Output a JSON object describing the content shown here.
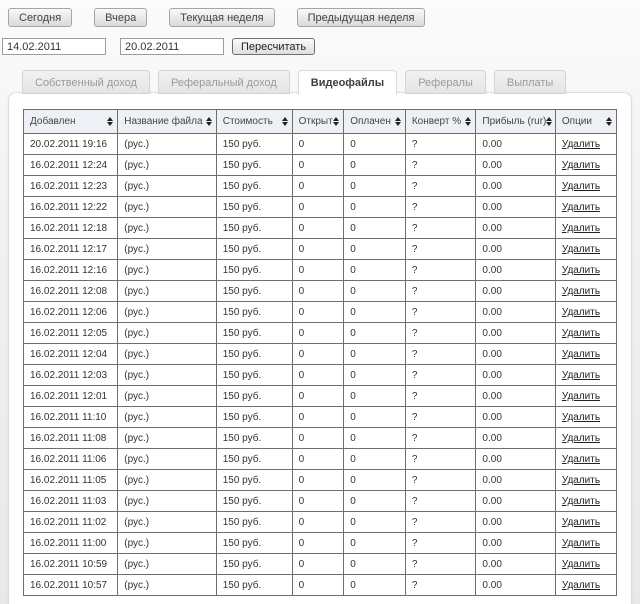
{
  "toolbar": {
    "buttons": [
      {
        "label": "Сегодня"
      },
      {
        "label": "Вчера"
      },
      {
        "label": "Текущая неделя"
      },
      {
        "label": "Предыдущая неделя"
      }
    ]
  },
  "date_filter": {
    "from_value": "14.02.2011",
    "to_value": "20.02.2011",
    "recalculate_label": "Пересчитать"
  },
  "tabs": [
    {
      "label": "Собственный доход",
      "active": false
    },
    {
      "label": "Реферальный доход",
      "active": false
    },
    {
      "label": "Видеофайлы",
      "active": true
    },
    {
      "label": "Рефералы",
      "active": false
    },
    {
      "label": "Выплаты",
      "active": false
    }
  ],
  "table": {
    "columns": [
      "Добавлен",
      "Название файла",
      "Стоимость",
      "Открыт",
      "Оплачен",
      "Конверт %",
      "Прибыль (rur)",
      "Опции"
    ],
    "rows": [
      [
        "20.02.2011 19:16",
        "(рус.)",
        "150 руб.",
        "0",
        "0",
        "?",
        "0.00",
        "Удалить"
      ],
      [
        "16.02.2011 12:24",
        "(рус.)",
        "150 руб.",
        "0",
        "0",
        "?",
        "0.00",
        "Удалить"
      ],
      [
        "16.02.2011 12:23",
        "(рус.)",
        "150 руб.",
        "0",
        "0",
        "?",
        "0.00",
        "Удалить"
      ],
      [
        "16.02.2011 12:22",
        "(рус.)",
        "150 руб.",
        "0",
        "0",
        "?",
        "0.00",
        "Удалить"
      ],
      [
        "16.02.2011 12:18",
        "(рус.)",
        "150 руб.",
        "0",
        "0",
        "?",
        "0.00",
        "Удалить"
      ],
      [
        "16.02.2011 12:17",
        "(рус.)",
        "150 руб.",
        "0",
        "0",
        "?",
        "0.00",
        "Удалить"
      ],
      [
        "16.02.2011 12:16",
        "(рус.)",
        "150 руб.",
        "0",
        "0",
        "?",
        "0.00",
        "Удалить"
      ],
      [
        "16.02.2011 12:08",
        "(рус.)",
        "150 руб.",
        "0",
        "0",
        "?",
        "0.00",
        "Удалить"
      ],
      [
        "16.02.2011 12:06",
        "(рус.)",
        "150 руб.",
        "0",
        "0",
        "?",
        "0.00",
        "Удалить"
      ],
      [
        "16.02.2011 12:05",
        "(рус.)",
        "150 руб.",
        "0",
        "0",
        "?",
        "0.00",
        "Удалить"
      ],
      [
        "16.02.2011 12:04",
        "(рус.)",
        "150 руб.",
        "0",
        "0",
        "?",
        "0.00",
        "Удалить"
      ],
      [
        "16.02.2011 12:03",
        "(рус.)",
        "150 руб.",
        "0",
        "0",
        "?",
        "0.00",
        "Удалить"
      ],
      [
        "16.02.2011 12:01",
        "(рус.)",
        "150 руб.",
        "0",
        "0",
        "?",
        "0.00",
        "Удалить"
      ],
      [
        "16.02.2011 11:10",
        "(рус.)",
        "150 руб.",
        "0",
        "0",
        "?",
        "0.00",
        "Удалить"
      ],
      [
        "16.02.2011 11:08",
        "(рус.)",
        "150 руб.",
        "0",
        "0",
        "?",
        "0.00",
        "Удалить"
      ],
      [
        "16.02.2011 11:06",
        "(рус.)",
        "150 руб.",
        "0",
        "0",
        "?",
        "0.00",
        "Удалить"
      ],
      [
        "16.02.2011 11:05",
        "(рус.)",
        "150 руб.",
        "0",
        "0",
        "?",
        "0.00",
        "Удалить"
      ],
      [
        "16.02.2011 11:03",
        "(рус.)",
        "150 руб.",
        "0",
        "0",
        "?",
        "0.00",
        "Удалить"
      ],
      [
        "16.02.2011 11:02",
        "(рус.)",
        "150 руб.",
        "0",
        "0",
        "?",
        "0.00",
        "Удалить"
      ],
      [
        "16.02.2011 11:00",
        "(рус.)",
        "150 руб.",
        "0",
        "0",
        "?",
        "0.00",
        "Удалить"
      ],
      [
        "16.02.2011 10:59",
        "(рус.)",
        "150 руб.",
        "0",
        "0",
        "?",
        "0.00",
        "Удалить"
      ],
      [
        "16.02.2011 10:57",
        "(рус.)",
        "150 руб.",
        "0",
        "0",
        "?",
        "0.00",
        "Удалить"
      ]
    ]
  },
  "colors": {
    "header_bg": "#edf1f6",
    "table_border": "#6e6e6e",
    "active_tab_text": "#3d3d3d",
    "inactive_tab_text": "#9a9a9a"
  }
}
